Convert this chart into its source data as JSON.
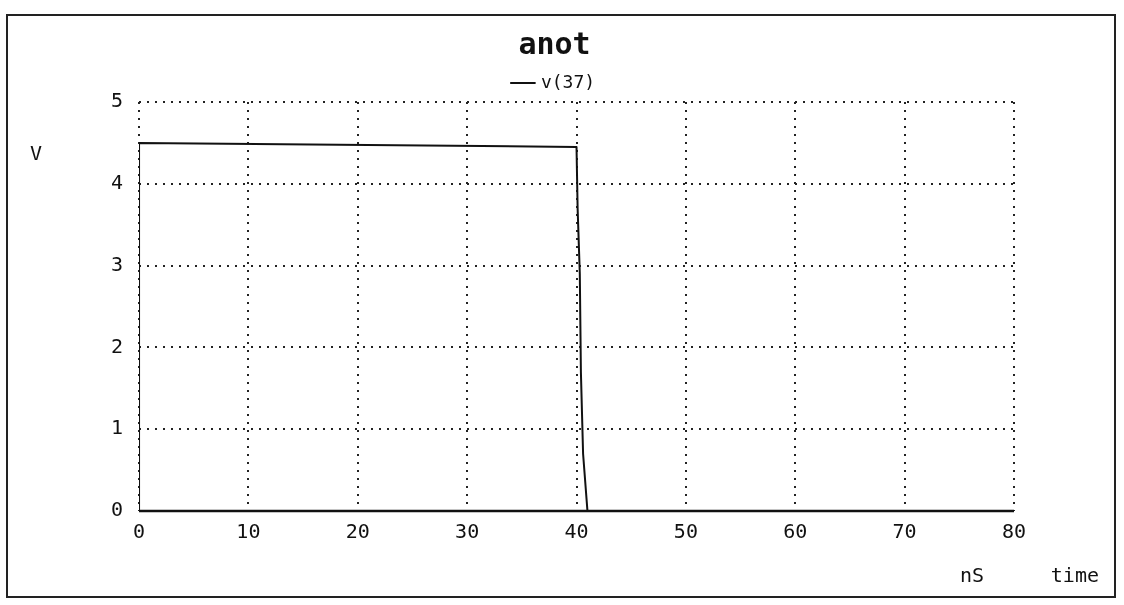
{
  "chart_data": {
    "type": "line",
    "title": "anot",
    "xlabel": "time",
    "ylabel": "V",
    "annotations": [
      "nS"
    ],
    "series": [
      {
        "name": "v(37)",
        "color": "#111111",
        "x": [
          0,
          0,
          40,
          40.1,
          40.3,
          40.4,
          40.6,
          41,
          80
        ],
        "values": [
          0,
          4.5,
          4.45,
          3.7,
          2.9,
          1.7,
          0.7,
          0,
          0
        ]
      }
    ],
    "xlim": [
      0,
      80
    ],
    "xticks": [
      0,
      10,
      20,
      30,
      40,
      50,
      60,
      70,
      80
    ],
    "ylim": [
      0,
      5
    ],
    "yticks": [
      0,
      1,
      2,
      3,
      4,
      5
    ],
    "grid": true,
    "legend": "top",
    "marker": "none",
    "line_style": "solid"
  }
}
